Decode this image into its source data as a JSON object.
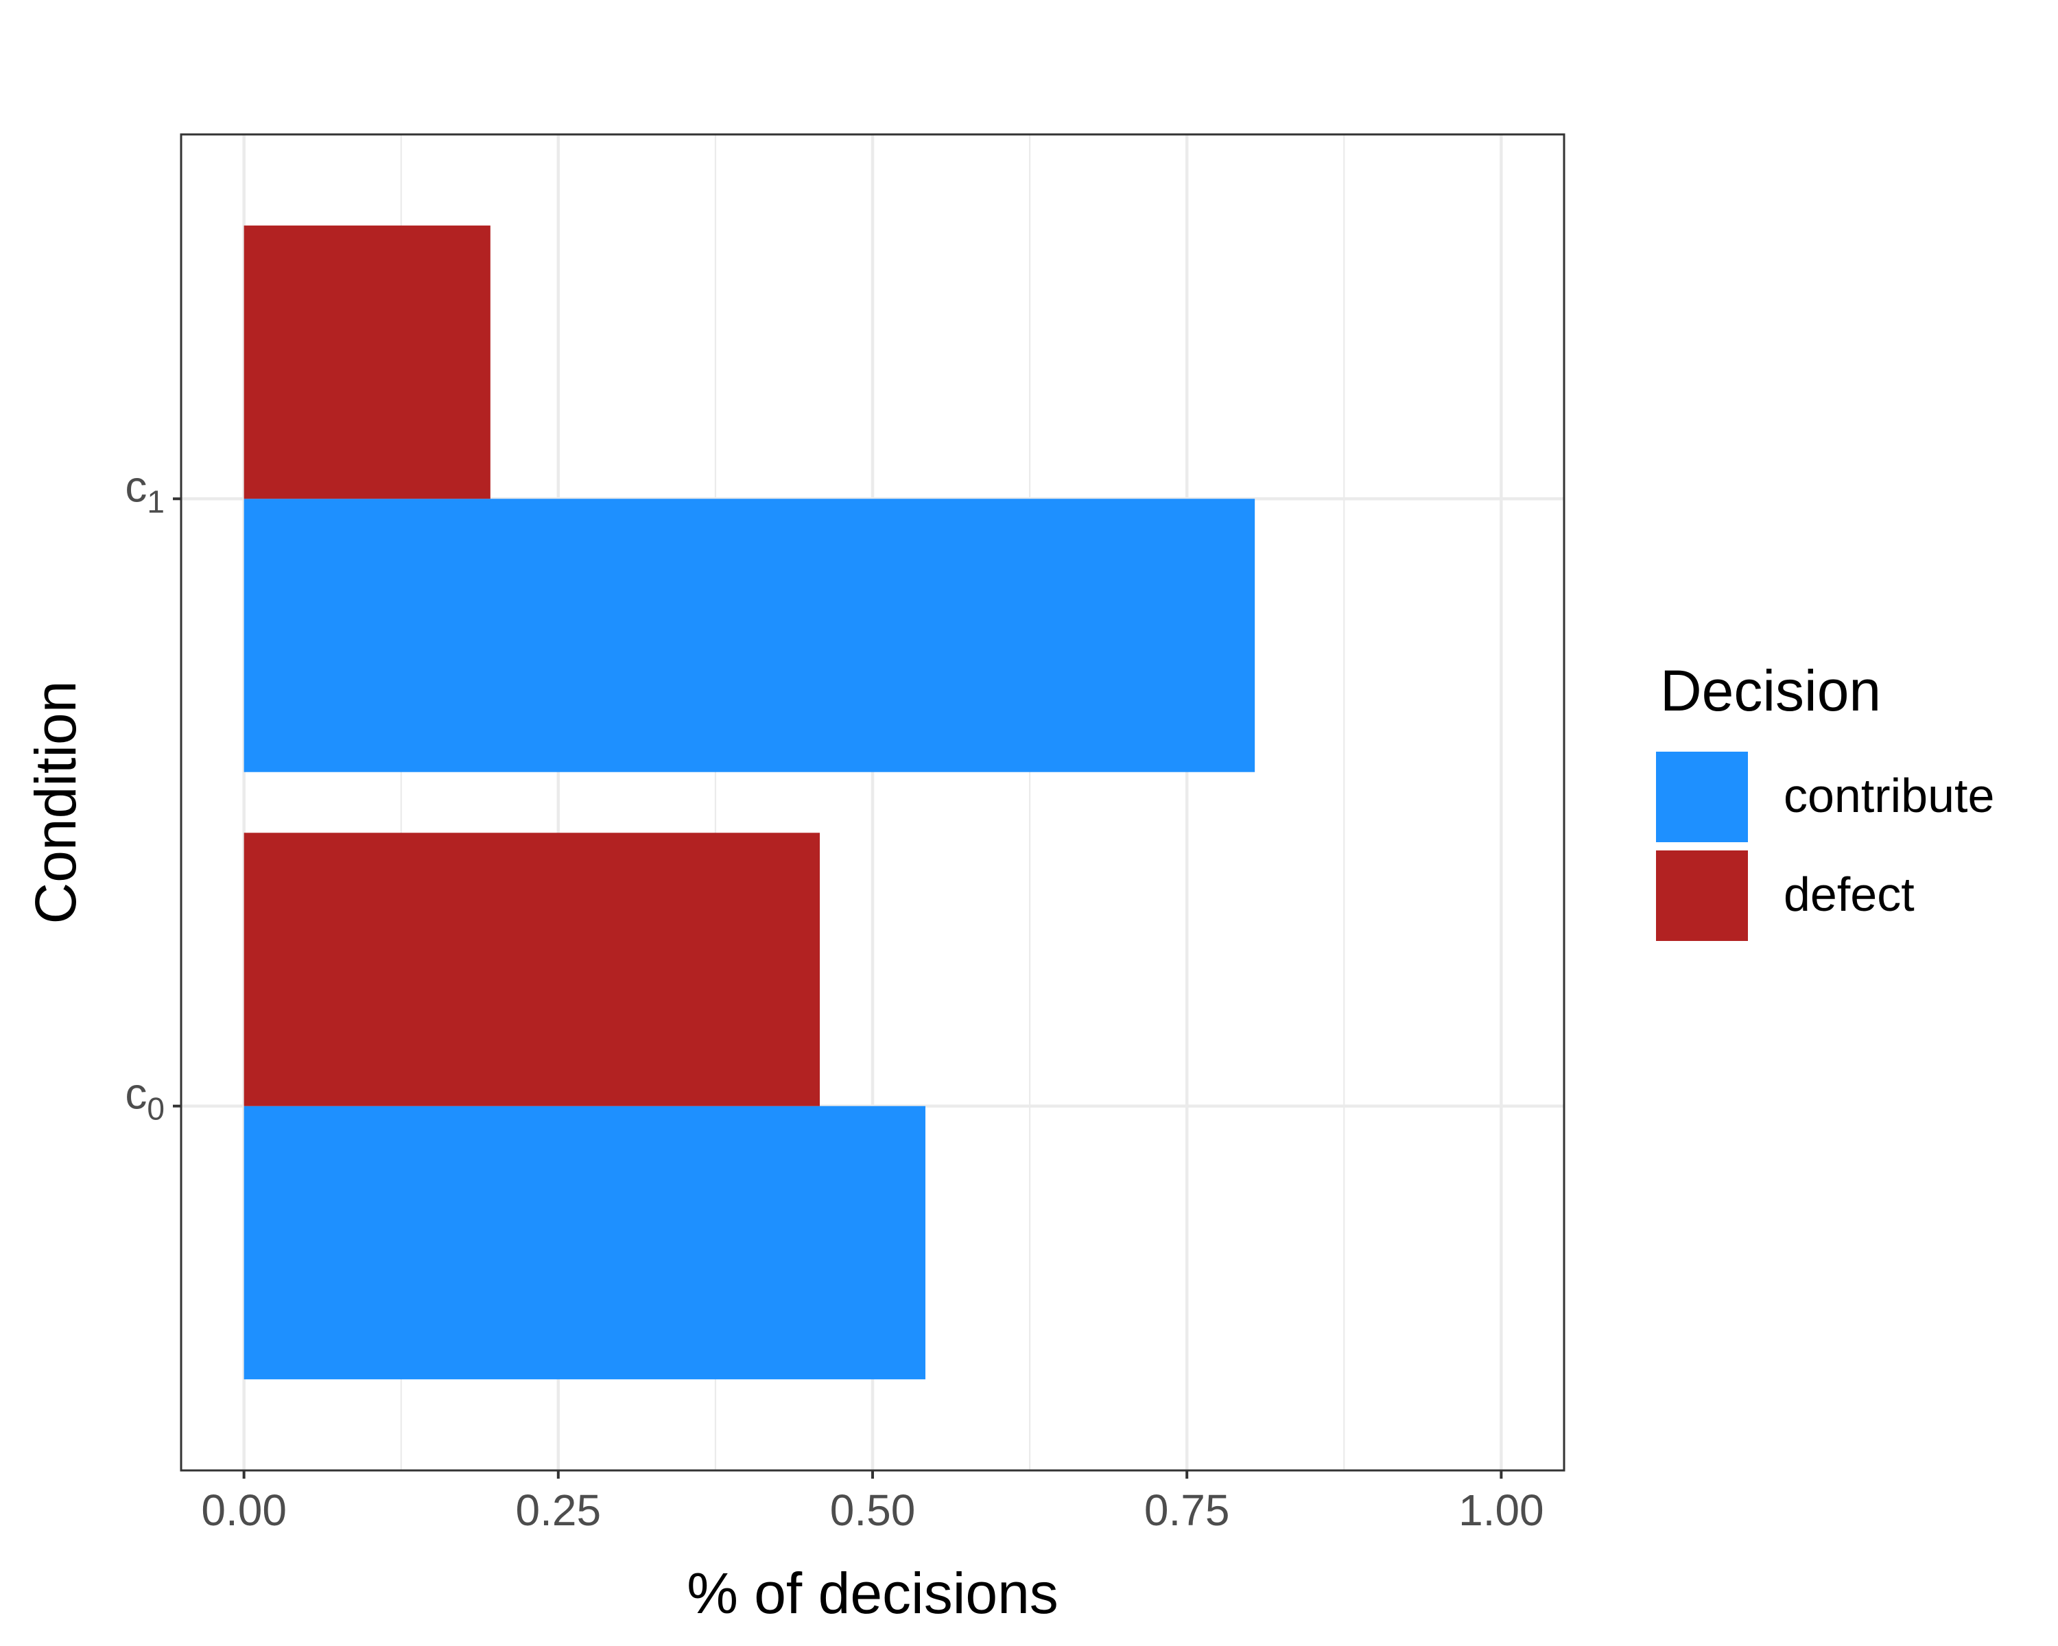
{
  "chart_data": {
    "type": "bar",
    "orientation": "horizontal",
    "categories": [
      {
        "base": "c",
        "sub": "0"
      },
      {
        "base": "c",
        "sub": "1"
      }
    ],
    "series": [
      {
        "name": "contribute",
        "color": "#1E90FF",
        "values": [
          0.542,
          0.804
        ]
      },
      {
        "name": "defect",
        "color": "#B22222",
        "values": [
          0.458,
          0.196
        ]
      }
    ],
    "xlabel": "% of decisions",
    "ylabel": "Condition",
    "xlim": [
      -0.05,
      1.05
    ],
    "xticks": [
      "0.00",
      "0.25",
      "0.50",
      "0.75",
      "1.00"
    ],
    "xtick_values": [
      0,
      0.25,
      0.5,
      0.75,
      1.0
    ],
    "grid": true,
    "legend": {
      "title": "Decision",
      "position": "right",
      "items": [
        "contribute",
        "defect"
      ]
    }
  }
}
